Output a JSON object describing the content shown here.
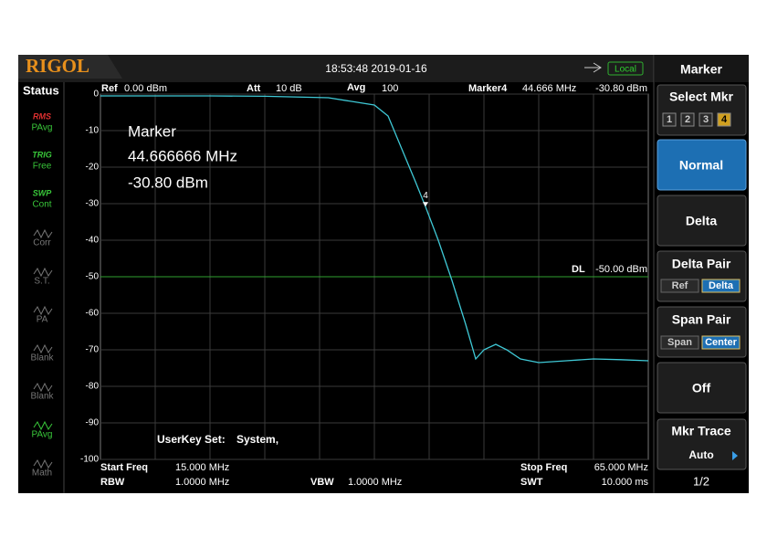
{
  "header": {
    "logo": "RIGOL",
    "datetime": "18:53:48 2019-01-16",
    "remote": "Local"
  },
  "status": {
    "title": "Status",
    "items": [
      {
        "tag": "RMS",
        "label": "PAvg",
        "active": true
      },
      {
        "tag": "TRIG",
        "label": "Free",
        "active": true
      },
      {
        "tag": "SWP",
        "label": "Cont",
        "active": true
      },
      {
        "label": "Corr",
        "active": false
      },
      {
        "label": "S.T.",
        "active": false
      },
      {
        "label": "PA",
        "active": false
      },
      {
        "label": "Blank",
        "active": false
      },
      {
        "label": "Blank",
        "active": false
      },
      {
        "label": "PAvg",
        "active": true
      },
      {
        "label": "Math",
        "active": false
      }
    ]
  },
  "info": {
    "ref_label": "Ref",
    "ref": "0.00 dBm",
    "att_label": "Att",
    "att": "10 dB",
    "avg_label": "Avg",
    "avg": "100",
    "marker_label": "Marker4",
    "marker_freq": "44.666 MHz",
    "marker_amp": "-30.80 dBm"
  },
  "marker_box": {
    "title": "Marker",
    "freq": "44.666666 MHz",
    "amp": "-30.80 dBm"
  },
  "userkey": {
    "label": "UserKey Set:",
    "value": "System,"
  },
  "footer": {
    "start_label": "Start Freq",
    "start": "15.000 MHz",
    "rbw_label": "RBW",
    "rbw": "1.0000 MHz",
    "vbw_label": "VBW",
    "vbw": "1.0000 MHz",
    "stop_label": "Stop Freq",
    "stop": "65.000 MHz",
    "swt_label": "SWT",
    "swt": "10.000 ms"
  },
  "menu": {
    "title": "Marker",
    "select_label": "Select Mkr",
    "select_options": [
      "1",
      "2",
      "3",
      "4"
    ],
    "normal": "Normal",
    "delta": "Delta",
    "delta_pair": "Delta Pair",
    "delta_pair_options": [
      "Ref",
      "Delta"
    ],
    "span_pair": "Span Pair",
    "span_pair_options": [
      "Span",
      "Center"
    ],
    "off": "Off",
    "mkr_trace": "Mkr Trace",
    "mkr_trace_value": "Auto",
    "page": "1/2"
  },
  "chart_data": {
    "type": "line",
    "color": "#3fc9d6",
    "x": [
      15,
      20,
      25,
      30,
      35.8,
      40,
      41.25,
      42.5,
      43.75,
      44.666666,
      45.83,
      47.08,
      48.33,
      49.25,
      50,
      51.08,
      52.08,
      53.33,
      55,
      57.5,
      60,
      62.5,
      65
    ],
    "values": [
      -0.5,
      -0.5,
      -0.5,
      -0.6,
      -1,
      -3,
      -6,
      -15,
      -24,
      -30.8,
      -40,
      -51,
      -63,
      -72.5,
      -70,
      -68.5,
      -70,
      -72.5,
      -73.5,
      -73,
      -72.5,
      -72.7,
      -73
    ],
    "xlim": [
      15,
      65
    ],
    "ylim": [
      -100,
      0
    ],
    "yticks": [
      0,
      -10,
      -20,
      -30,
      -40,
      -50,
      -60,
      -70,
      -80,
      -90,
      -100
    ],
    "grid": true,
    "display_line": {
      "label": "DL",
      "value_label": "-50.00 dBm",
      "value": -50,
      "color": "#2fa02f"
    },
    "marker": {
      "label": "4",
      "x": 44.666666,
      "y": -30.8
    }
  }
}
